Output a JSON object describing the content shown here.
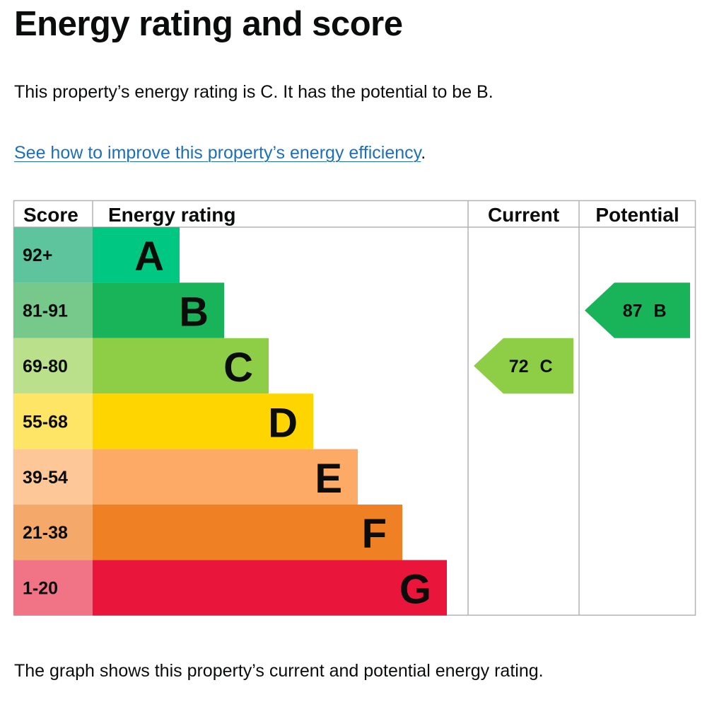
{
  "heading": "Energy rating and score",
  "summary": "This property’s energy rating is C. It has the potential to be B.",
  "improve_link": "See how to improve this property’s energy efficiency",
  "improve_suffix": ".",
  "footer": "The graph shows this property’s current and potential energy rating.",
  "chart_data": {
    "type": "bar",
    "headers": {
      "score": "Score",
      "rating": "Energy rating",
      "current": "Current",
      "potential": "Potential"
    },
    "bands": [
      {
        "letter": "A",
        "range": "92+",
        "color": "#008054",
        "score_bg": "#5ec49d",
        "bar_color": "#00c781"
      },
      {
        "letter": "B",
        "range": "81-91",
        "color": "#19b459",
        "score_bg": "#76c98a",
        "bar_color": "#19b459"
      },
      {
        "letter": "C",
        "range": "69-80",
        "color": "#8dce46",
        "score_bg": "#bbe08c",
        "bar_color": "#8dce46"
      },
      {
        "letter": "D",
        "range": "55-68",
        "color": "#ffd500",
        "score_bg": "#ffe566",
        "bar_color": "#ffd500"
      },
      {
        "letter": "E",
        "range": "39-54",
        "color": "#fcaa65",
        "score_bg": "#fdc797",
        "bar_color": "#fcaa65"
      },
      {
        "letter": "F",
        "range": "21-38",
        "color": "#ef8023",
        "score_bg": "#f4a86a",
        "bar_color": "#ef8023"
      },
      {
        "letter": "G",
        "range": "1-20",
        "color": "#e9153b",
        "score_bg": "#f07386",
        "bar_color": "#e9153b"
      }
    ],
    "current": {
      "score": 72,
      "letter": "C",
      "color": "#8dce46"
    },
    "potential": {
      "score": 87,
      "letter": "B",
      "color": "#19b459"
    }
  }
}
